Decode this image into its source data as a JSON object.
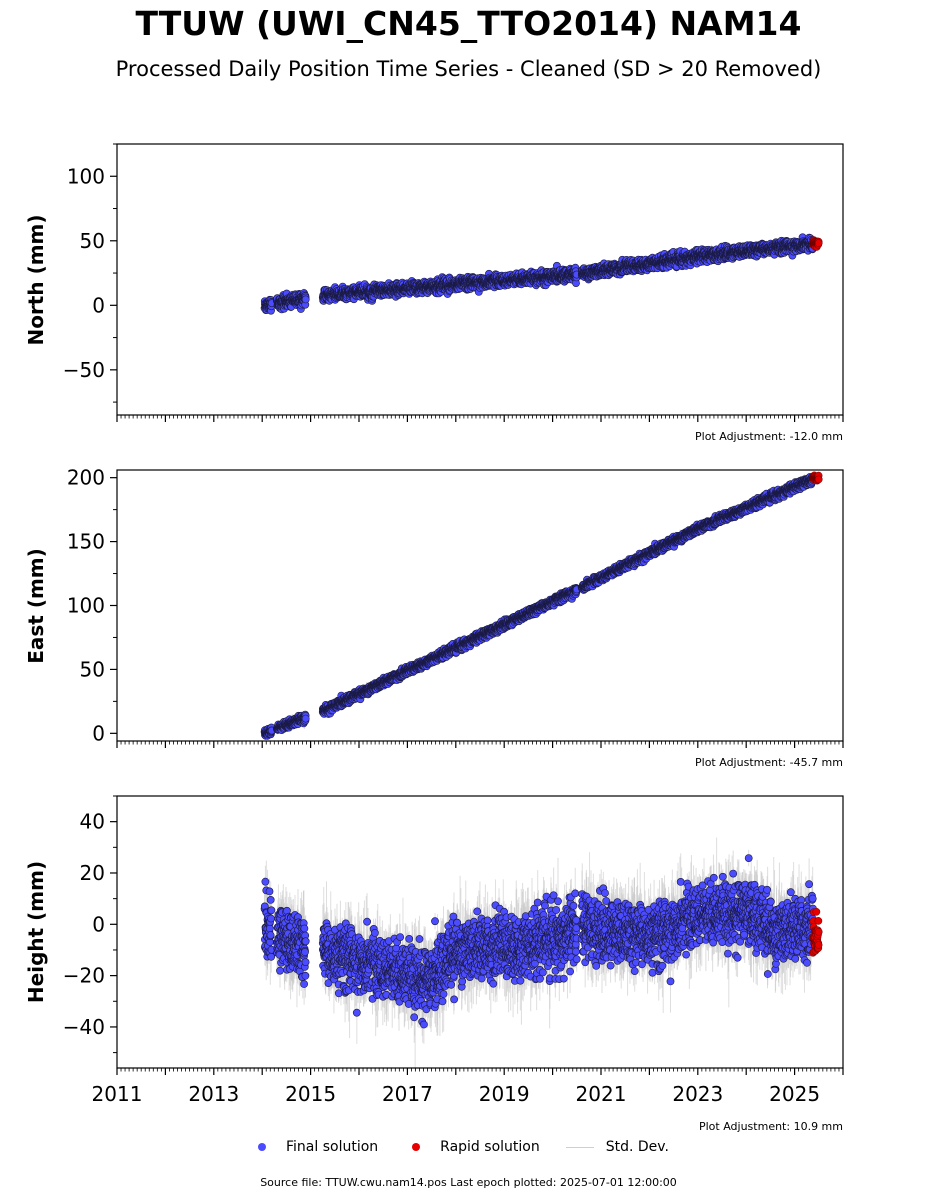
{
  "header": {
    "title": "TTUW (UWI_CN45_TTO2014) NAM14",
    "subtitle": "Processed Daily Position Time Series - Cleaned (SD > 20 Removed)"
  },
  "legend": {
    "final_label": "Final solution",
    "rapid_label": "Rapid solution",
    "std_label": "Std. Dev.",
    "final_color": "#4b4bff",
    "rapid_color": "#e60000",
    "std_color": "#c8c8c8"
  },
  "footer": {
    "text": "Source file: TTUW.cwu.nam14.pos  Last epoch plotted: 2025-07-01 12:00:00"
  },
  "chart_data": [
    {
      "type": "scatter",
      "component": "north",
      "ylabel": "North (mm)",
      "xlim": [
        2011,
        2026
      ],
      "ylim": [
        -85,
        125
      ],
      "yticks": [
        -50,
        0,
        50,
        100
      ],
      "adjustment": "Plot Adjustment: -12.0 mm",
      "trend": [
        [
          2014.05,
          0
        ],
        [
          2015.35,
          8
        ],
        [
          2020.5,
          24
        ],
        [
          2023.0,
          38
        ],
        [
          2025.5,
          48
        ]
      ],
      "scatter_sd": 2.2,
      "gaps": [
        [
          2014.2,
          2014.3
        ],
        [
          2014.9,
          2015.25
        ],
        [
          2020.5,
          2020.6
        ]
      ],
      "rapid": {
        "start": 2025.38,
        "end": 2025.5,
        "mean": 48,
        "sd": 1.5
      },
      "error_sd": 2
    },
    {
      "type": "scatter",
      "component": "east",
      "ylabel": "East (mm)",
      "xlim": [
        2011,
        2026
      ],
      "ylim": [
        -6,
        206
      ],
      "yticks": [
        0,
        50,
        100,
        150,
        200
      ],
      "adjustment": "Plot Adjustment: -45.7 mm",
      "trend": [
        [
          2014.05,
          0
        ],
        [
          2015.35,
          19
        ],
        [
          2020.5,
          112
        ],
        [
          2023.0,
          160
        ],
        [
          2025.5,
          201
        ]
      ],
      "scatter_sd": 1.5,
      "gaps": [
        [
          2014.2,
          2014.3
        ],
        [
          2014.9,
          2015.25
        ],
        [
          2020.5,
          2020.6
        ]
      ],
      "rapid": {
        "start": 2025.38,
        "end": 2025.5,
        "mean": 200,
        "sd": 1
      },
      "error_sd": 2
    },
    {
      "type": "scatter",
      "component": "height",
      "ylabel": "Height (mm)",
      "xlim": [
        2011,
        2026
      ],
      "ylim": [
        -56,
        50
      ],
      "yticks": [
        -40,
        -20,
        0,
        20,
        40
      ],
      "xticks": [
        2011,
        2013,
        2015,
        2017,
        2019,
        2021,
        2023,
        2025
      ],
      "adjustment": "Plot Adjustment: 10.9 mm",
      "trend": [
        [
          2014.05,
          0
        ],
        [
          2014.6,
          -8
        ],
        [
          2015.4,
          -12
        ],
        [
          2016.5,
          -17
        ],
        [
          2017.5,
          -22
        ],
        [
          2018.0,
          -10
        ],
        [
          2019.5,
          -8
        ],
        [
          2020.3,
          -4
        ],
        [
          2020.6,
          0
        ],
        [
          2021.5,
          -4
        ],
        [
          2022.2,
          -5
        ],
        [
          2023.0,
          4
        ],
        [
          2024.0,
          5
        ],
        [
          2024.6,
          -3
        ],
        [
          2025.5,
          0
        ]
      ],
      "scatter_sd": 6,
      "gaps": [
        [
          2014.2,
          2014.3
        ],
        [
          2014.9,
          2015.25
        ],
        [
          2020.5,
          2020.6
        ]
      ],
      "rapid": {
        "start": 2025.38,
        "end": 2025.5,
        "mean": -6,
        "sd": 4
      },
      "error_sd": 9
    }
  ]
}
